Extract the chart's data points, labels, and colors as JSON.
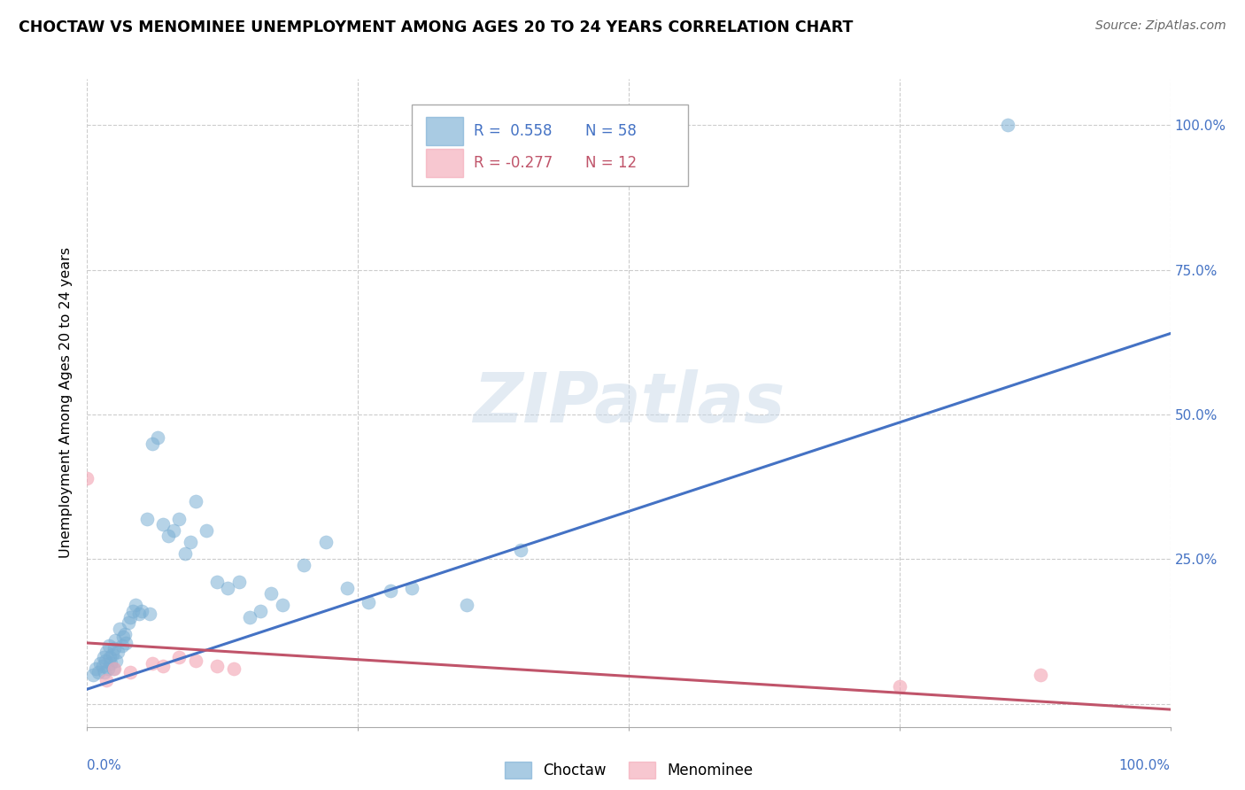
{
  "title": "CHOCTAW VS MENOMINEE UNEMPLOYMENT AMONG AGES 20 TO 24 YEARS CORRELATION CHART",
  "source": "Source: ZipAtlas.com",
  "ylabel": "Unemployment Among Ages 20 to 24 years",
  "choctaw_color": "#7bafd4",
  "menominee_color": "#f4a9b8",
  "choctaw_line_color": "#4472c4",
  "menominee_line_color": "#c0546a",
  "legend_R_choctaw": "R =  0.558",
  "legend_N_choctaw": "N = 58",
  "legend_R_menominee": "R = -0.277",
  "legend_N_menominee": "N = 12",
  "watermark": "ZIPatlas",
  "choctaw_x": [
    0.005,
    0.008,
    0.01,
    0.012,
    0.014,
    0.015,
    0.016,
    0.017,
    0.018,
    0.019,
    0.02,
    0.021,
    0.022,
    0.023,
    0.024,
    0.025,
    0.026,
    0.027,
    0.028,
    0.03,
    0.032,
    0.033,
    0.035,
    0.036,
    0.038,
    0.04,
    0.042,
    0.045,
    0.048,
    0.05,
    0.055,
    0.058,
    0.06,
    0.065,
    0.07,
    0.075,
    0.08,
    0.085,
    0.09,
    0.095,
    0.1,
    0.11,
    0.12,
    0.13,
    0.14,
    0.15,
    0.16,
    0.17,
    0.18,
    0.2,
    0.22,
    0.24,
    0.26,
    0.28,
    0.3,
    0.35,
    0.4,
    0.85
  ],
  "choctaw_y": [
    0.05,
    0.06,
    0.055,
    0.07,
    0.065,
    0.08,
    0.055,
    0.075,
    0.09,
    0.06,
    0.1,
    0.08,
    0.07,
    0.085,
    0.06,
    0.095,
    0.11,
    0.075,
    0.09,
    0.13,
    0.1,
    0.115,
    0.12,
    0.105,
    0.14,
    0.15,
    0.16,
    0.17,
    0.155,
    0.16,
    0.32,
    0.155,
    0.45,
    0.46,
    0.31,
    0.29,
    0.3,
    0.32,
    0.26,
    0.28,
    0.35,
    0.3,
    0.21,
    0.2,
    0.21,
    0.15,
    0.16,
    0.19,
    0.17,
    0.24,
    0.28,
    0.2,
    0.175,
    0.195,
    0.2,
    0.17,
    0.265,
    1.0
  ],
  "menominee_x": [
    0.0,
    0.018,
    0.025,
    0.04,
    0.06,
    0.07,
    0.085,
    0.1,
    0.12,
    0.135,
    0.75,
    0.88
  ],
  "menominee_y": [
    0.39,
    0.04,
    0.06,
    0.055,
    0.07,
    0.065,
    0.08,
    0.075,
    0.065,
    0.06,
    0.03,
    0.05
  ],
  "choctaw_trend": [
    0.0,
    1.0,
    0.025,
    0.64
  ],
  "menominee_trend": [
    0.0,
    1.0,
    0.105,
    -0.01
  ],
  "xlim": [
    0.0,
    1.0
  ],
  "ylim": [
    -0.04,
    1.08
  ],
  "yticks": [
    0.0,
    0.25,
    0.5,
    0.75,
    1.0
  ],
  "ytick_labels": [
    "",
    "25.0%",
    "50.0%",
    "75.0%",
    "100.0%"
  ],
  "right_ytick_labels": [
    "",
    "25.0%",
    "50.0%",
    "75.0%",
    "100.0%"
  ],
  "xtick_left_label": "0.0%",
  "xtick_right_label": "100.0%"
}
